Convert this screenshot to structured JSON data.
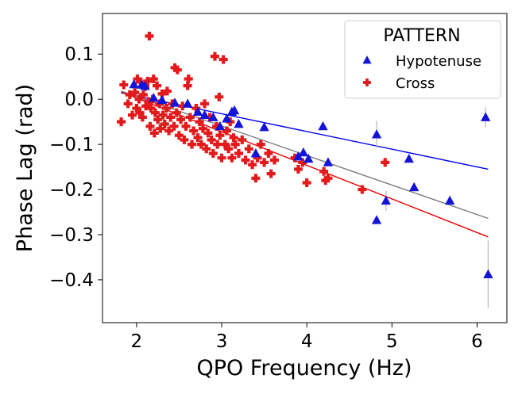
{
  "chart_data": {
    "type": "scatter",
    "xlabel": "QPO Frequency (Hz)",
    "ylabel": "Phase Lag (rad)",
    "xlim": [
      1.6,
      6.35
    ],
    "ylim": [
      -0.495,
      0.19
    ],
    "xticks": [
      2,
      3,
      4,
      5,
      6
    ],
    "xtick_labels": [
      "2",
      "3",
      "4",
      "5",
      "6"
    ],
    "yticks": [
      0.1,
      0.0,
      -0.1,
      -0.2,
      -0.3,
      -0.4
    ],
    "ytick_labels": [
      "0.1",
      "0.0",
      "−0.1",
      "−0.2",
      "−0.3",
      "−0.4"
    ],
    "grid": false,
    "legend": {
      "title": "PATTERN",
      "position": "top-right"
    },
    "series": [
      {
        "name": "Hypotenuse",
        "marker": "triangle",
        "color": "#1414d8",
        "points": [
          [
            1.97,
            0.033
          ],
          [
            2.06,
            0.032
          ],
          [
            2.1,
            0.029
          ],
          [
            2.2,
            0.003
          ],
          [
            2.3,
            -0.002
          ],
          [
            2.45,
            -0.008
          ],
          [
            2.6,
            -0.01
          ],
          [
            2.72,
            -0.028
          ],
          [
            2.8,
            -0.035
          ],
          [
            2.9,
            -0.04
          ],
          [
            2.98,
            -0.06
          ],
          [
            3.06,
            -0.043
          ],
          [
            3.12,
            -0.028
          ],
          [
            3.15,
            -0.025
          ],
          [
            3.2,
            -0.055
          ],
          [
            3.4,
            -0.12
          ],
          [
            3.5,
            -0.062
          ],
          [
            3.9,
            -0.127
          ],
          [
            3.96,
            -0.118
          ],
          [
            4.02,
            -0.132
          ],
          [
            4.19,
            -0.06
          ],
          [
            4.25,
            -0.14
          ],
          [
            4.82,
            -0.078
          ],
          [
            4.82,
            -0.268
          ],
          [
            4.93,
            -0.225
          ],
          [
            5.2,
            -0.132
          ],
          [
            5.26,
            -0.195
          ],
          [
            5.68,
            -0.225
          ],
          [
            6.1,
            -0.04
          ],
          [
            6.13,
            -0.388
          ]
        ],
        "errors": [
          [
            4.82,
            0.03
          ],
          [
            4.93,
            0.022
          ],
          [
            6.13,
            0.075
          ],
          [
            6.1,
            0.022
          ],
          [
            5.68,
            0.012
          ],
          [
            5.26,
            0.01
          ]
        ]
      },
      {
        "name": "Cross",
        "marker": "plus",
        "color": "#e31a1c",
        "points": [
          [
            1.82,
            -0.05
          ],
          [
            1.85,
            0.032
          ],
          [
            1.9,
            -0.01
          ],
          [
            1.92,
            0.01
          ],
          [
            1.95,
            -0.035
          ],
          [
            1.98,
            0.015
          ],
          [
            2.0,
            -0.02
          ],
          [
            2.01,
            0.045
          ],
          [
            2.03,
            0.0
          ],
          [
            2.04,
            -0.03
          ],
          [
            2.05,
            0.038
          ],
          [
            2.07,
            -0.04
          ],
          [
            2.08,
            0.01
          ],
          [
            2.1,
            0.028
          ],
          [
            2.11,
            -0.015
          ],
          [
            2.13,
            0.04
          ],
          [
            2.14,
            -0.005
          ],
          [
            2.15,
            0.14
          ],
          [
            2.16,
            -0.06
          ],
          [
            2.17,
            -0.02
          ],
          [
            2.19,
            0.0
          ],
          [
            2.2,
            0.045
          ],
          [
            2.21,
            -0.075
          ],
          [
            2.22,
            -0.03
          ],
          [
            2.24,
            0.03
          ],
          [
            2.25,
            -0.045
          ],
          [
            2.27,
            -0.01
          ],
          [
            2.28,
            -0.065
          ],
          [
            2.3,
            0.012
          ],
          [
            2.31,
            -0.035
          ],
          [
            2.33,
            -0.055
          ],
          [
            2.35,
            -0.02
          ],
          [
            2.36,
            0.018
          ],
          [
            2.38,
            -0.07
          ],
          [
            2.4,
            -0.04
          ],
          [
            2.42,
            -0.01
          ],
          [
            2.44,
            -0.06
          ],
          [
            2.45,
            0.07
          ],
          [
            2.47,
            -0.03
          ],
          [
            2.48,
            0.065
          ],
          [
            2.5,
            -0.08
          ],
          [
            2.52,
            -0.045
          ],
          [
            2.54,
            -0.015
          ],
          [
            2.56,
            -0.09
          ],
          [
            2.58,
            -0.06
          ],
          [
            2.6,
            0.03
          ],
          [
            2.61,
            0.045
          ],
          [
            2.63,
            -0.04
          ],
          [
            2.65,
            -0.1
          ],
          [
            2.67,
            -0.07
          ],
          [
            2.7,
            -0.02
          ],
          [
            2.72,
            -0.085
          ],
          [
            2.74,
            -0.05
          ],
          [
            2.76,
            -0.1
          ],
          [
            2.78,
            -0.065
          ],
          [
            2.8,
            -0.01
          ],
          [
            2.82,
            -0.11
          ],
          [
            2.84,
            -0.075
          ],
          [
            2.86,
            -0.04
          ],
          [
            2.88,
            -0.09
          ],
          [
            2.9,
            -0.12
          ],
          [
            2.92,
            0.095
          ],
          [
            2.94,
            -0.06
          ],
          [
            2.95,
            -0.1
          ],
          [
            2.97,
            0.005
          ],
          [
            2.98,
            -0.08
          ],
          [
            3.0,
            -0.13
          ],
          [
            3.02,
            0.088
          ],
          [
            3.04,
            -0.1
          ],
          [
            3.06,
            -0.07
          ],
          [
            3.08,
            -0.11
          ],
          [
            3.1,
            -0.05
          ],
          [
            3.12,
            -0.13
          ],
          [
            3.14,
            -0.085
          ],
          [
            3.16,
            -0.1
          ],
          [
            3.2,
            -0.12
          ],
          [
            3.24,
            -0.09
          ],
          [
            3.28,
            -0.135
          ],
          [
            3.32,
            -0.11
          ],
          [
            3.36,
            -0.145
          ],
          [
            3.4,
            -0.175
          ],
          [
            3.42,
            -0.13
          ],
          [
            3.46,
            -0.1
          ],
          [
            3.5,
            -0.14
          ],
          [
            3.55,
            -0.12
          ],
          [
            3.58,
            -0.165
          ],
          [
            3.62,
            -0.135
          ],
          [
            3.86,
            -0.13
          ],
          [
            3.9,
            -0.155
          ],
          [
            3.95,
            -0.14
          ],
          [
            4.0,
            -0.185
          ],
          [
            4.2,
            -0.16
          ],
          [
            4.22,
            -0.18
          ],
          [
            4.25,
            -0.175
          ],
          [
            4.65,
            -0.2
          ],
          [
            4.92,
            -0.14
          ]
        ]
      }
    ],
    "fits": [
      {
        "name": "Hypotenuse fit",
        "color": "#0000ee",
        "x": [
          1.82,
          6.13
        ],
        "y": [
          0.014,
          -0.155
        ]
      },
      {
        "name": "Cross fit",
        "color": "#ee0000",
        "x": [
          1.82,
          6.13
        ],
        "y": [
          0.016,
          -0.305
        ]
      },
      {
        "name": "Combined fit",
        "color": "#7a7a7a",
        "x": [
          1.82,
          6.13
        ],
        "y": [
          0.018,
          -0.264
        ]
      }
    ]
  }
}
